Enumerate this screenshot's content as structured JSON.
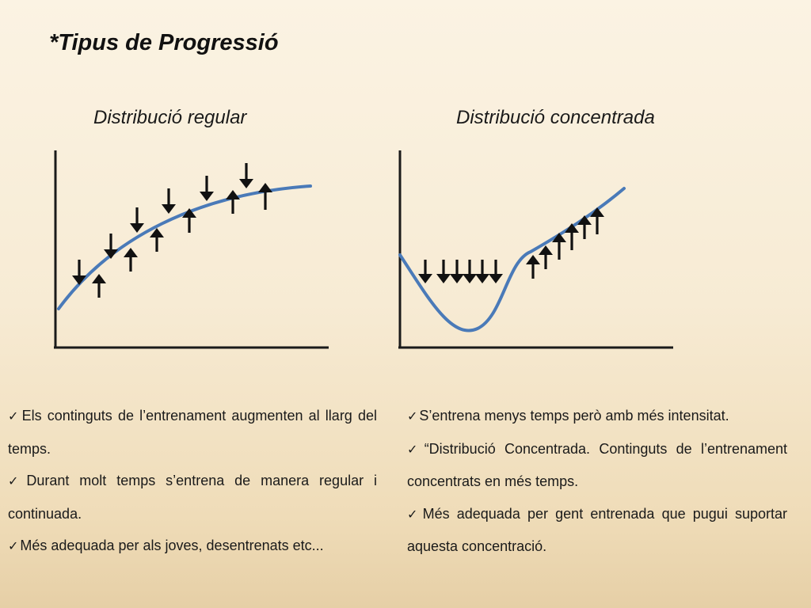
{
  "title": "*Tipus de Progressió",
  "diagrams": {
    "regular": {
      "title": "Distribució regular",
      "arrows_down_count": 6,
      "arrows_up_count": 6
    },
    "concentrated": {
      "title": "Distribució concentrada",
      "arrows_down_count": 6,
      "arrows_up_count": 6
    }
  },
  "icons": {
    "bullet": "checkmark-icon",
    "arrow_down": "arrow-down-icon",
    "arrow_up": "arrow-up-icon"
  },
  "colors": {
    "curve": "#4a7ab8",
    "arrow": "#111111"
  },
  "left_bullets": [
    "Els continguts de l’entrenament augmenten al llarg del temps.",
    "Durant molt temps s’entrena de manera regular i continuada.",
    "Més adequada per als joves, desentrenats etc..."
  ],
  "right_bullets": [
    "S’entrena menys temps però amb més intensitat.",
    "“Distribució Concentrada. Continguts de l’entrenament concentrats en més temps.",
    "Més adequada per gent entrenada que pugui suportar aquesta concentració."
  ]
}
